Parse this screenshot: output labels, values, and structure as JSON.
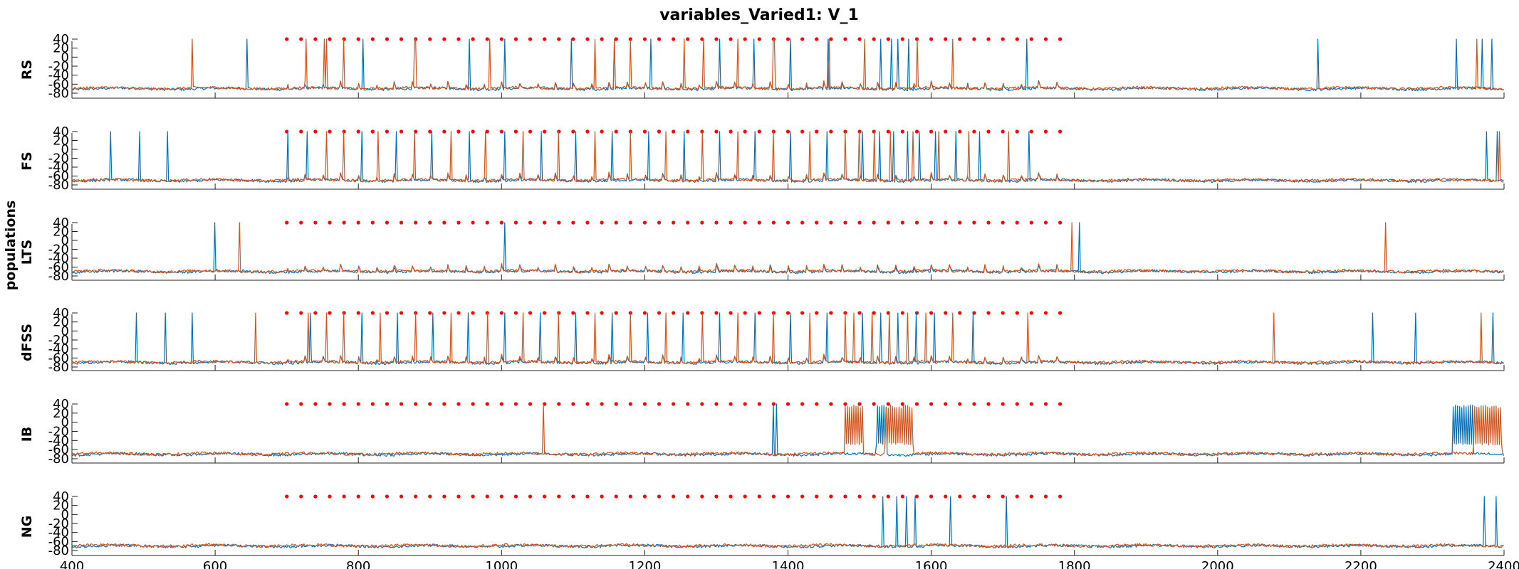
{
  "title": "variables_Varied1: V_1",
  "chart_data": {
    "type": "line",
    "title": "variables_Varied1: V_1",
    "ylabel": "populations",
    "xlim": [
      400,
      2400
    ],
    "x_ticks": [
      400,
      600,
      800,
      1000,
      1200,
      1400,
      1600,
      1800,
      2000,
      2200,
      2400
    ],
    "y_ticks": [
      40,
      20,
      0,
      -20,
      -40,
      -60,
      -80
    ],
    "y_tick_labels": [
      "40",
      "20",
      "0",
      "-20",
      "-40",
      "-60",
      "-80"
    ],
    "ylim": [
      -85,
      45
    ],
    "grid": false,
    "colors": {
      "series1": "#0072BD",
      "series2": "#D95319",
      "stim": "#FF0000"
    },
    "stim_markers": {
      "x_start": 700,
      "x_end": 1780,
      "step": 20,
      "y": 40
    },
    "panels": [
      {
        "name": "RS",
        "series": [
          {
            "color": "blue",
            "spikes": [
              645,
              806,
              955,
              1004,
              1098,
              1157,
              1208,
              1305,
              1352,
              1404,
              1456,
              1529,
              1544,
              1554,
              1569,
              1733,
              2140,
              2333,
              2370,
              2383
            ]
          },
          {
            "color": "orange",
            "spikes": [
              568,
              727,
              753,
              755,
              779,
              878,
              880,
              983,
              1130,
              1158,
              1180,
              1255,
              1282,
              1330,
              1380,
              1381,
              1458,
              1507,
              1580,
              1630,
              2362
            ]
          }
        ]
      },
      {
        "name": "FS",
        "series": [
          {
            "color": "blue",
            "spikes": [
              454,
              495,
              533,
              701,
              729,
              805,
              853,
              903,
              955,
              1004,
              1055,
              1104,
              1155,
              1205,
              1255,
              1304,
              1354,
              1404,
              1455,
              1504,
              1528,
              1548,
              1567,
              1584,
              1606,
              1635,
              1668,
              1737,
              2376,
              2390
            ]
          },
          {
            "color": "orange",
            "spikes": [
              755,
              780,
              828,
              878,
              929,
              978,
              1030,
              1080,
              1130,
              1180,
              1230,
              1280,
              1330,
              1380,
              1430,
              1480,
              1500,
              1520,
              1543,
              1574,
              1610,
              1652,
              1708,
              2393
            ]
          }
        ]
      },
      {
        "name": "LTS",
        "series": [
          {
            "color": "blue",
            "spikes": [
              600,
              1005,
              1807
            ]
          },
          {
            "color": "orange",
            "spikes": [
              634,
              1797,
              2235
            ]
          }
        ]
      },
      {
        "name": "dFSS",
        "series": [
          {
            "color": "blue",
            "spikes": [
              490,
              530,
              568,
              733,
              805,
              855,
              904,
              954,
              1005,
              1054,
              1104,
              1154,
              1204,
              1254,
              1304,
              1354,
              1404,
              1454,
              1504,
              1529,
              1554,
              1579,
              1604,
              1659,
              2217,
              2276,
              2384
            ]
          },
          {
            "color": "orange",
            "spikes": [
              656,
              730,
              755,
              780,
              830,
              880,
              930,
              980,
              1030,
              1080,
              1130,
              1180,
              1230,
              1280,
              1330,
              1380,
              1430,
              1480,
              1492,
              1517,
              1542,
              1567,
              1592,
              1630,
              1735,
              2078,
              2368
            ]
          }
        ]
      },
      {
        "name": "IB",
        "series": [
          {
            "color": "blue",
            "spikes": [
              1380,
              1384
            ],
            "burst_ranges": [
              [
                1523,
                1537
              ],
              [
                2329,
                2356
              ]
            ]
          },
          {
            "color": "orange",
            "spikes": [
              1058
            ],
            "burst_ranges": [
              [
                1480,
                1505
              ],
              [
                1535,
                1575
              ],
              [
                2357,
                2397
              ]
            ]
          }
        ]
      },
      {
        "name": "NG",
        "series": [
          {
            "color": "blue",
            "spikes": [
              1532,
              1552,
              1565,
              1578,
              1627,
              1705,
              2373,
              2389
            ]
          },
          {
            "color": "orange",
            "spikes": []
          }
        ]
      }
    ]
  }
}
